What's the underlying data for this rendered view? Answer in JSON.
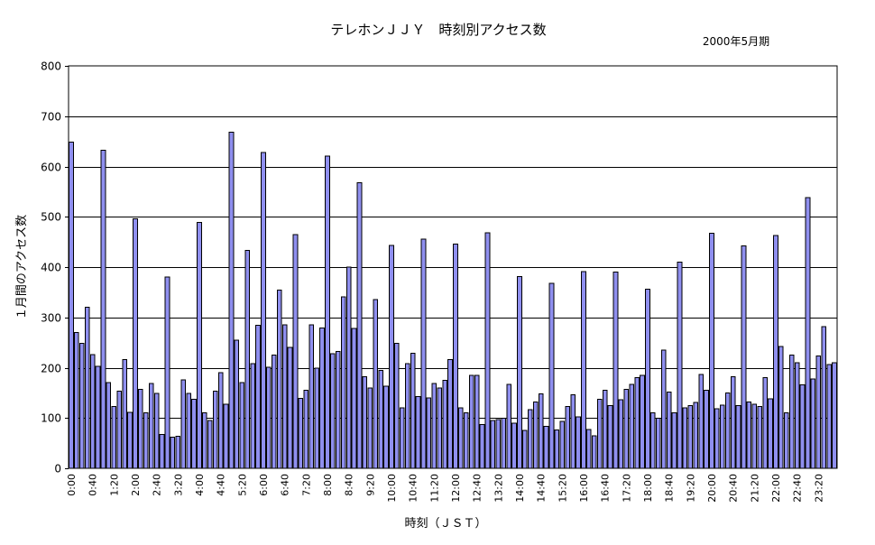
{
  "chart_data": {
    "type": "bar",
    "title": "テレホンＪＪＹ　時刻別アクセス数",
    "subtitle": "2000年5月期",
    "xlabel": "時刻（ＪＳＴ）",
    "ylabel": "１月間のアクセス数",
    "ylim": [
      0,
      800
    ],
    "yticks": [
      0,
      100,
      200,
      300,
      400,
      500,
      600,
      700,
      800
    ],
    "grid": true,
    "bar_color": "#8f8fef",
    "interval_minutes": 10,
    "xtick_labels": [
      "0:00",
      "0:40",
      "1:20",
      "2:00",
      "2:40",
      "3:20",
      "4:00",
      "4:40",
      "5:20",
      "6:00",
      "6:40",
      "7:20",
      "8:00",
      "8:40",
      "9:20",
      "10:00",
      "10:40",
      "11:20",
      "12:00",
      "12:40",
      "13:20",
      "14:00",
      "14:40",
      "15:20",
      "16:00",
      "16:40",
      "17:20",
      "18:00",
      "18:40",
      "19:20",
      "20:00",
      "20:40",
      "21:20",
      "22:00",
      "22:40",
      "23:20"
    ],
    "values": [
      648,
      270,
      248,
      320,
      226,
      203,
      632,
      170,
      123,
      153,
      216,
      111,
      496,
      157,
      110,
      169,
      149,
      67,
      380,
      62,
      64,
      176,
      149,
      137,
      489,
      110,
      95,
      153,
      190,
      127,
      668,
      255,
      170,
      433,
      208,
      284,
      628,
      201,
      225,
      354,
      285,
      240,
      465,
      139,
      155,
      285,
      199,
      279,
      621,
      228,
      232,
      341,
      400,
      278,
      568,
      182,
      160,
      335,
      195,
      163,
      443,
      248,
      120,
      208,
      229,
      143,
      456,
      140,
      169,
      160,
      175,
      216,
      446,
      120,
      110,
      185,
      185,
      87,
      468,
      95,
      97,
      100,
      167,
      90,
      381,
      75,
      117,
      132,
      148,
      83,
      368,
      76,
      93,
      123,
      146,
      102,
      391,
      77,
      65,
      137,
      155,
      125,
      390,
      136,
      157,
      167,
      180,
      185,
      356,
      110,
      100,
      235,
      152,
      110,
      410,
      120,
      125,
      131,
      187,
      155,
      467,
      118,
      126,
      150,
      182,
      125,
      442,
      132,
      127,
      123,
      180,
      138,
      463,
      242,
      110,
      225,
      210,
      166,
      538,
      178,
      223,
      282,
      206,
      210
    ]
  }
}
